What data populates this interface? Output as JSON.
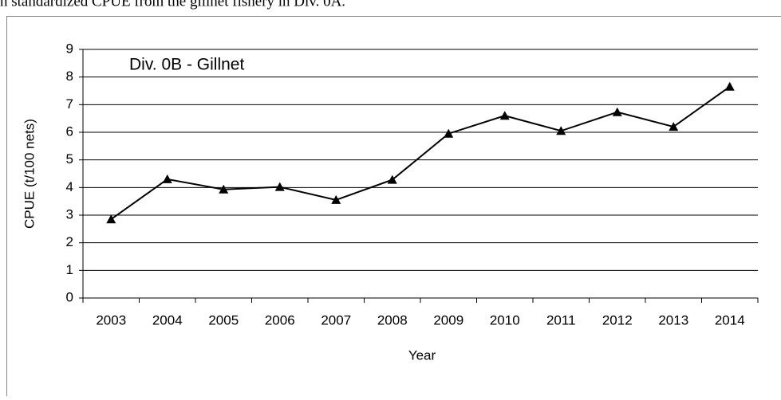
{
  "caption": "n standardized CPUE from the gillnet fishery in Div. 0A.",
  "chart_data": {
    "type": "line",
    "annotation": "Div. 0B - Gillnet",
    "x_label": "Year",
    "y_label": "CPUE (t/100 nets)",
    "categories": [
      "2003",
      "2004",
      "2005",
      "2006",
      "2007",
      "2008",
      "2009",
      "2010",
      "2011",
      "2012",
      "2013",
      "2014"
    ],
    "values": [
      2.85,
      4.3,
      3.93,
      4.02,
      3.55,
      4.28,
      5.95,
      6.6,
      6.05,
      6.73,
      6.2,
      7.65
    ],
    "color": "#000000",
    "marker": "triangle",
    "ylim": [
      0,
      9
    ],
    "yticks": [
      0,
      1,
      2,
      3,
      4,
      5,
      6,
      7,
      8,
      9
    ],
    "grid": true
  }
}
